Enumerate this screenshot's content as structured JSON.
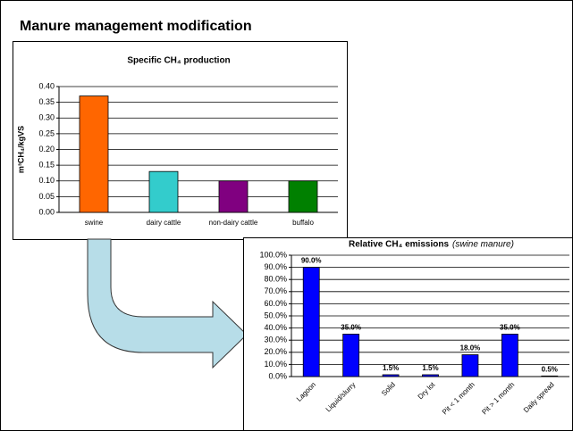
{
  "header": {
    "title": "Manure management modification"
  },
  "chart_data": [
    {
      "type": "bar",
      "title": "Specific CH₄ production",
      "y_label": "m³CH₄/kgVS",
      "categories": [
        "swine",
        "dairy cattle",
        "non-dairy cattle",
        "buffalo"
      ],
      "values": [
        0.37,
        0.13,
        0.1,
        0.1
      ],
      "colors": [
        "#ff6600",
        "#33cccc",
        "#800080",
        "#008000"
      ],
      "ylim": [
        0,
        0.4
      ],
      "yticks": [
        {
          "value": 0,
          "label": "0.00"
        },
        0.05,
        {
          "value": 0.1,
          "label": "0.10"
        },
        0.15,
        {
          "value": 0.2,
          "label": "0.20"
        },
        0.25,
        {
          "value": 0.3,
          "label": "0.30"
        },
        0.35,
        {
          "value": 0.4,
          "label": "0.40"
        }
      ],
      "grid": true
    },
    {
      "type": "bar",
      "title": "Relative CH₄ emissions",
      "subtitle": "(swine manure)",
      "categories": [
        "Lagoon",
        "Liquid/slurry",
        "Solid",
        "Dry lot",
        "Pit < 1 month",
        "Pit > 1 month",
        "Daily spread"
      ],
      "values": [
        90,
        35,
        1.5,
        1.5,
        18,
        35,
        0.5
      ],
      "value_labels": [
        "90.0%",
        "35.0%",
        "1.5%",
        "1.5%",
        "18.0%",
        "35.0%",
        "0.5%"
      ],
      "color": "#0000ff",
      "ylim": [
        0,
        100
      ],
      "yticks": [
        {
          "value": 0,
          "label": "0.0%"
        },
        {
          "value": 10,
          "label": "10.0%"
        },
        {
          "value": 20,
          "label": "20.0%"
        },
        {
          "value": 30,
          "label": "30.0%"
        },
        {
          "value": 40,
          "label": "40.0%"
        },
        {
          "value": 50,
          "label": "50.0%"
        },
        {
          "value": 60,
          "label": "60.0%"
        },
        {
          "value": 70,
          "label": "70.0%"
        },
        {
          "value": 80,
          "label": "80.0%"
        },
        {
          "value": 90,
          "label": "90.0%"
        },
        {
          "value": 100,
          "label": "100.0%"
        }
      ],
      "grid": true
    }
  ]
}
